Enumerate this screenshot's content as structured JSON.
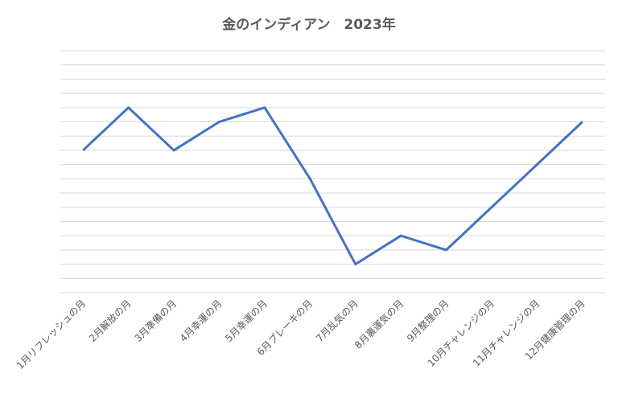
{
  "chart_data": {
    "type": "line",
    "title": "金のインディアン　2023年",
    "categories": [
      "1月リフレッシュの月",
      "2月解放の月",
      "3月準備の月",
      "4月幸運の月",
      "5月幸運の月",
      "6月ブレーキの月",
      "7月乱気の月",
      "8月裏運気の月",
      "9月整理の月",
      "10月チャレンジの月",
      "11月チャレンジの月",
      "12月健康管理の月"
    ],
    "values": [
      10,
      13,
      10,
      12,
      13,
      8,
      2,
      4,
      3,
      6,
      9,
      12
    ],
    "color": "#4472c4",
    "ylim": [
      0,
      17
    ],
    "yticks": [
      0,
      1,
      2,
      3,
      4,
      5,
      6,
      7,
      8,
      9,
      10,
      11,
      12,
      13,
      14,
      15,
      16,
      17
    ],
    "grid": true
  }
}
